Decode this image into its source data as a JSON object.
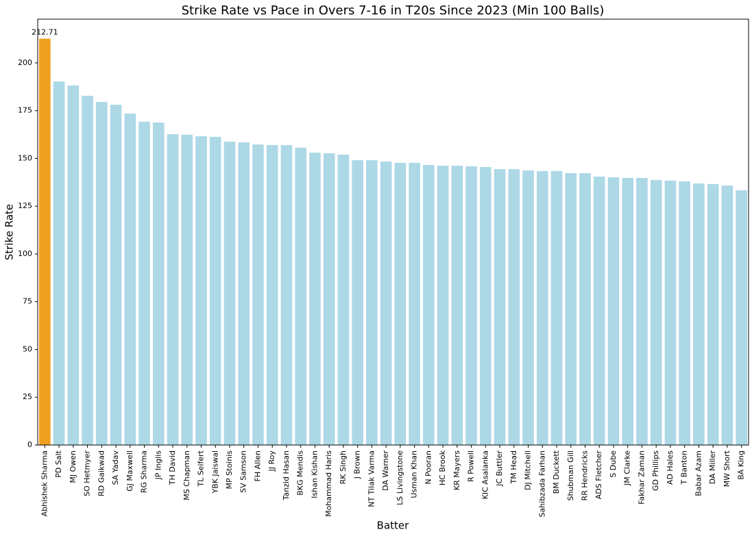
{
  "chart_data": {
    "type": "bar",
    "title": "Strike Rate vs Pace in Overs 7-16 in T20s Since 2023 (Min 100 Balls)",
    "x_label": "Batter",
    "y_label": "Strike Rate",
    "categories": [
      "Abhishek Sharma",
      "PD Salt",
      "MJ Owen",
      "SO Hetmyer",
      "RD Gaikwad",
      "SA Yadav",
      "GJ Maxwell",
      "RG Sharma",
      "JP Inglis",
      "TH David",
      "MS Chapman",
      "TL Seifert",
      "YBK Jaiswal",
      "MP Stoinis",
      "SV Samson",
      "FH Allen",
      "JJ Roy",
      "Tanzid Hasan",
      "BKG Mendis",
      "Ishan Kishan",
      "Mohammad Haris",
      "RK Singh",
      "J Brown",
      "NT Tilak Varma",
      "DA Warner",
      "LS Livingstone",
      "Usman Khan",
      "N Pooran",
      "HC Brook",
      "KR Mayers",
      "R Powell",
      "KIC Asalanka",
      "JC Buttler",
      "TM Head",
      "DJ Mitchell",
      "Sahibzada Farhan",
      "BM Duckett",
      "Shubman Gill",
      "RR Hendricks",
      "ADS Fletcher",
      "S Dube",
      "JM Clarke",
      "Fakhar Zaman",
      "GD Phillips",
      "AD Hales",
      "T Banton",
      "Babar Azam",
      "DA Miller",
      "MW Short",
      "BA King"
    ],
    "values": [
      212.71,
      190.3,
      188.2,
      182.8,
      179.6,
      178.1,
      173.5,
      169.2,
      168.8,
      162.7,
      162.4,
      161.6,
      161.3,
      158.8,
      158.4,
      157.3,
      157.0,
      157.0,
      155.6,
      153.0,
      152.7,
      152.0,
      149.1,
      149.1,
      148.4,
      147.7,
      147.7,
      146.6,
      146.2,
      146.2,
      145.9,
      145.5,
      144.4,
      144.4,
      143.7,
      143.4,
      143.4,
      142.3,
      142.3,
      140.5,
      140.1,
      139.8,
      139.8,
      138.7,
      138.4,
      138.0,
      136.9,
      136.6,
      135.8,
      133.3
    ],
    "color": "#add8e6",
    "highlight": {
      "index": 0,
      "color": "#f0a020",
      "show_value": true
    },
    "ylim": [
      0,
      222.9
    ],
    "yticks": [
      0,
      25,
      50,
      75,
      100,
      125,
      150,
      175,
      200
    ],
    "grid": false
  }
}
